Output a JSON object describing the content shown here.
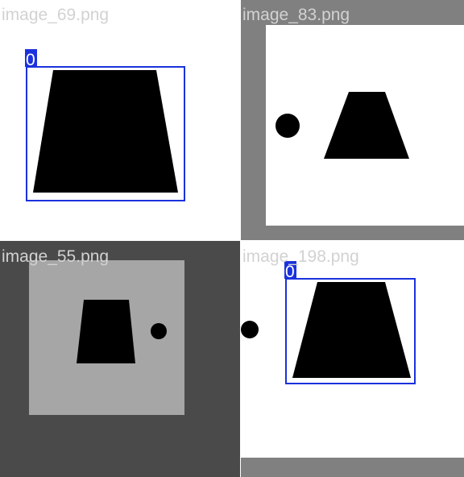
{
  "tiles": [
    {
      "filename": "image_69.png",
      "background": "#ffffff",
      "detections": [
        {
          "class_label": "0"
        }
      ]
    },
    {
      "filename": "image_83.png",
      "background": "#808080",
      "inner_background": "#ffffff",
      "detections": []
    },
    {
      "filename": "image_55.png",
      "background": "#4a4a4a",
      "inner_background": "#a6a6a6",
      "detections": []
    },
    {
      "filename": "image_198.png",
      "background": "#ffffff",
      "detections": [
        {
          "class_label": "0"
        }
      ]
    }
  ],
  "colors": {
    "box": "#1a32dc",
    "shape": "#000000",
    "label_text": "#d2d2d2",
    "border_band": "#808080"
  }
}
